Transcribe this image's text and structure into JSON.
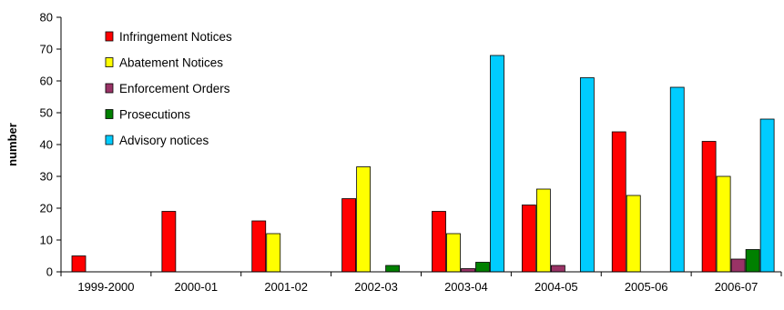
{
  "chart_data": {
    "type": "bar",
    "title": "",
    "xlabel": "",
    "ylabel": "number",
    "ylim": [
      0,
      80
    ],
    "yticks": [
      0,
      10,
      20,
      30,
      40,
      50,
      60,
      70,
      80
    ],
    "grid": false,
    "legend_position": "top-left",
    "categories": [
      "1999-2000",
      "2000-01",
      "2001-02",
      "2002-03",
      "2003-04",
      "2004-05",
      "2005-06",
      "2006-07"
    ],
    "series": [
      {
        "name": "Infringement Notices",
        "color": "#ff0000",
        "values": [
          5,
          19,
          16,
          23,
          19,
          21,
          44,
          41
        ]
      },
      {
        "name": "Abatement Notices",
        "color": "#ffff00",
        "values": [
          0,
          0,
          12,
          33,
          12,
          26,
          24,
          30
        ]
      },
      {
        "name": "Enforcement Orders",
        "color": "#993366",
        "values": [
          0,
          0,
          0,
          0,
          1,
          2,
          0,
          4
        ]
      },
      {
        "name": "Prosecutions",
        "color": "#008000",
        "values": [
          0,
          0,
          0,
          2,
          3,
          0,
          0,
          7
        ]
      },
      {
        "name": "Advisory notices",
        "color": "#00ccff",
        "values": [
          0,
          0,
          0,
          0,
          68,
          61,
          58,
          48
        ]
      }
    ]
  }
}
